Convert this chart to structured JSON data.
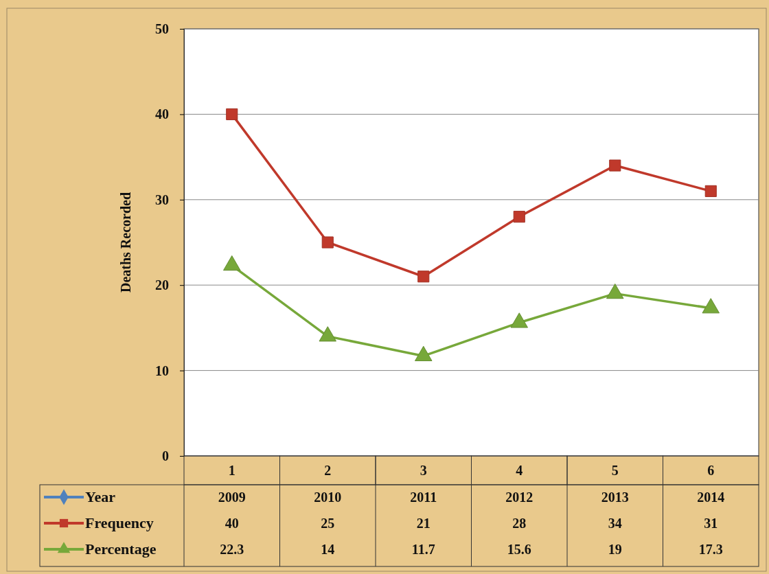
{
  "chart_data": {
    "type": "line",
    "ylabel": "Deaths Recorded",
    "categories": [
      "1",
      "2",
      "3",
      "4",
      "5",
      "6"
    ],
    "ylim": [
      0,
      50
    ],
    "yticks": [
      0,
      10,
      20,
      30,
      40,
      50
    ],
    "grid": "y",
    "legend": "bottom",
    "line_style": "solid",
    "series": [
      {
        "name": "Year",
        "color": "#4f81bd",
        "marker": "diamond",
        "values": [
          null,
          null,
          null,
          null,
          null,
          null
        ],
        "value_labels": [
          "2009",
          "2010",
          "2011",
          "2012",
          "2013",
          "2014"
        ]
      },
      {
        "name": "Frequency",
        "color": "#c0392b",
        "marker": "square",
        "values": [
          40,
          25,
          21,
          28,
          34,
          31
        ],
        "value_labels": [
          "40",
          "25",
          "21",
          "28",
          "34",
          "31"
        ]
      },
      {
        "name": "Percentage",
        "color": "#77a83a",
        "marker": "triangle",
        "values": [
          22.3,
          14,
          11.7,
          15.6,
          19,
          17.3
        ],
        "value_labels": [
          "22.3",
          "14",
          "11.7",
          "15.6",
          "19",
          "17.3"
        ]
      }
    ]
  }
}
